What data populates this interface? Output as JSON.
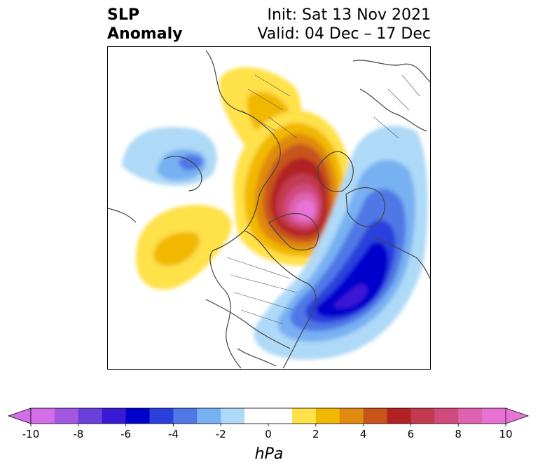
{
  "header": {
    "variable": "SLP",
    "variable2": "Anomaly",
    "init": "Init: Sat 13 Nov 2021",
    "valid": "Valid: 04 Dec – 17 Dec"
  },
  "colorbar": {
    "units": "hPa",
    "min": -10,
    "max": 10,
    "step": 1,
    "extend": "both",
    "tick_labels": [
      "-10",
      "-8",
      "-6",
      "-4",
      "-2",
      "0",
      "2",
      "4",
      "6",
      "8",
      "10"
    ],
    "tick_values": [
      -10,
      -8,
      -6,
      -4,
      -2,
      0,
      2,
      4,
      6,
      8,
      10
    ],
    "colors": [
      "#d36ee8",
      "#a157e0",
      "#6a3fdb",
      "#3a19d4",
      "#0000cc",
      "#2a3fdc",
      "#4f78e6",
      "#78b1f2",
      "#aed9f7",
      "#ffffff",
      "#ffffff",
      "#ffe14a",
      "#f2b800",
      "#e08a10",
      "#c8541a",
      "#b22222",
      "#c23a50",
      "#d04a7e",
      "#de62ae",
      "#e873d6"
    ]
  },
  "map": {
    "projection": "polar stereographic (North)",
    "field": "sea level pressure anomaly",
    "features": [
      {
        "name": "positive anomaly center over Greenland / Arctic",
        "peak_hPa": 10
      },
      {
        "name": "negative anomaly center over North Atlantic / western Europe",
        "peak_hPa": -7
      },
      {
        "name": "negative anomaly over western Siberia",
        "peak_hPa": -4
      },
      {
        "name": "positive anomaly over North Pacific",
        "peak_hPa": 3
      }
    ]
  }
}
